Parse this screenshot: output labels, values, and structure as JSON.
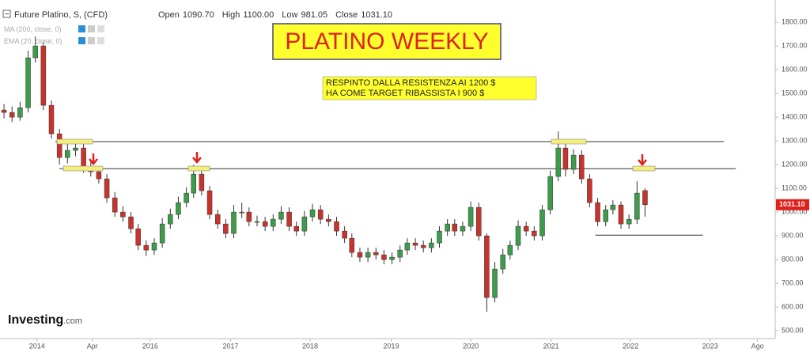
{
  "chart_data": {
    "type": "candlestick",
    "title": "Future Platino, S, (CFD)",
    "info": [
      {
        "label": "Open",
        "value": "1090.70"
      },
      {
        "label": "High",
        "value": "1100.00"
      },
      {
        "label": "Low",
        "value": "981.05"
      },
      {
        "label": "Close",
        "value": "1031.10"
      }
    ],
    "indicators": [
      "MA (200, close, 0)",
      "EMA (20, close, 0)"
    ],
    "annotation_title": "PLATINO WEEKLY",
    "annotation_note": [
      "RESPINTO DALLA RESISTENZA AI 1200 $",
      "HA COME TARGET RIBASSISTA I 900 $"
    ],
    "price_tag": "1031.10",
    "logo": {
      "main": "Investing",
      "suffix": ".com"
    },
    "up_color": "#3d9b4a",
    "down_color": "#c8332b",
    "grid": false,
    "x": [
      2014.18,
      2014.28,
      2014.38,
      2014.48,
      2014.57,
      2014.67,
      2014.77,
      2014.87,
      2014.97,
      2015.07,
      2015.17,
      2015.26,
      2015.36,
      2015.46,
      2015.56,
      2015.66,
      2015.76,
      2015.85,
      2015.95,
      2016.05,
      2016.15,
      2016.25,
      2016.35,
      2016.45,
      2016.54,
      2016.64,
      2016.74,
      2016.84,
      2016.94,
      2017.04,
      2017.14,
      2017.23,
      2017.33,
      2017.43,
      2017.53,
      2017.63,
      2017.73,
      2017.82,
      2017.92,
      2018.02,
      2018.12,
      2018.22,
      2018.32,
      2018.42,
      2018.51,
      2018.61,
      2018.71,
      2018.81,
      2018.91,
      2019.01,
      2019.11,
      2019.2,
      2019.3,
      2019.4,
      2019.5,
      2019.6,
      2019.7,
      2019.79,
      2019.89,
      2019.99,
      2020.09,
      2020.19,
      2020.29,
      2020.39,
      2020.48,
      2020.58,
      2020.68,
      2020.78,
      2020.88,
      2020.98,
      2021.08,
      2021.17,
      2021.27,
      2021.37,
      2021.47,
      2021.57,
      2021.67,
      2021.76,
      2021.86,
      2021.96,
      2022.06,
      2022.16
    ],
    "open": [
      1430,
      1420,
      1400,
      1440,
      1650,
      1700,
      1450,
      1330,
      1230,
      1260,
      1270,
      1190,
      1170,
      1140,
      1060,
      1000,
      980,
      930,
      860,
      840,
      870,
      950,
      990,
      1040,
      1080,
      1160,
      1090,
      990,
      950,
      910,
      1000,
      1000,
      960,
      960,
      940,
      970,
      1000,
      940,
      920,
      980,
      1010,
      970,
      960,
      920,
      890,
      830,
      810,
      830,
      820,
      800,
      810,
      840,
      870,
      860,
      850,
      870,
      920,
      950,
      920,
      940,
      1020,
      900,
      640,
      760,
      820,
      860,
      940,
      920,
      900,
      1010,
      1150,
      1270,
      1180,
      1240,
      1140,
      1040,
      960,
      1010,
      1030,
      950,
      970,
      1090.7
    ],
    "high": [
      1455,
      1445,
      1465,
      1680,
      1740,
      1720,
      1470,
      1350,
      1290,
      1300,
      1290,
      1215,
      1190,
      1160,
      1085,
      1025,
      1000,
      950,
      880,
      890,
      975,
      1015,
      1065,
      1105,
      1200,
      1185,
      1110,
      1010,
      970,
      1030,
      1040,
      1020,
      985,
      980,
      990,
      1025,
      1020,
      960,
      1005,
      1035,
      1030,
      990,
      980,
      940,
      910,
      850,
      850,
      850,
      840,
      830,
      860,
      890,
      890,
      880,
      890,
      940,
      970,
      970,
      960,
      1045,
      1040,
      910,
      790,
      845,
      880,
      965,
      960,
      940,
      1030,
      1175,
      1340,
      1290,
      1265,
      1260,
      1160,
      1060,
      1030,
      1050,
      1045,
      990,
      1130,
      1100
    ],
    "low": [
      1395,
      1380,
      1385,
      1420,
      1630,
      1430,
      1310,
      1200,
      1205,
      1235,
      1165,
      1150,
      1120,
      1040,
      980,
      960,
      910,
      840,
      815,
      820,
      850,
      930,
      970,
      1020,
      1060,
      1070,
      970,
      930,
      890,
      890,
      975,
      940,
      940,
      920,
      920,
      950,
      920,
      900,
      900,
      960,
      950,
      940,
      900,
      870,
      810,
      790,
      790,
      800,
      780,
      780,
      790,
      820,
      840,
      830,
      830,
      850,
      900,
      900,
      900,
      920,
      880,
      580,
      620,
      740,
      800,
      840,
      900,
      880,
      880,
      990,
      1130,
      1150,
      1160,
      1120,
      1020,
      940,
      940,
      990,
      930,
      930,
      950,
      981.05
    ],
    "close": [
      1420,
      1400,
      1440,
      1650,
      1700,
      1450,
      1330,
      1230,
      1260,
      1270,
      1190,
      1170,
      1140,
      1060,
      1000,
      980,
      930,
      860,
      840,
      870,
      950,
      990,
      1040,
      1080,
      1160,
      1090,
      990,
      950,
      910,
      1000,
      1000,
      960,
      960,
      940,
      970,
      1000,
      940,
      920,
      980,
      1010,
      970,
      960,
      920,
      890,
      830,
      810,
      830,
      820,
      800,
      810,
      840,
      870,
      860,
      850,
      870,
      920,
      950,
      920,
      940,
      1020,
      900,
      640,
      760,
      820,
      860,
      940,
      920,
      900,
      1010,
      1150,
      1270,
      1180,
      1240,
      1140,
      1040,
      960,
      1010,
      1030,
      950,
      970,
      1080,
      1031.1
    ],
    "hlines": [
      {
        "y": 1297,
        "x": [
          2014.82,
          2023.14
        ]
      },
      {
        "y": 1183,
        "x": [
          2014.87,
          2023.29
        ]
      },
      {
        "y": 903,
        "x": [
          2021.54,
          2022.88
        ]
      }
    ],
    "xlim": [
      2014.13,
      2023.78
    ],
    "xticks": [
      {
        "value": 2014.59,
        "label": "2014"
      },
      {
        "value": 2015.28,
        "label": "Apr"
      },
      2016,
      {
        "value": 2017.0,
        "label": "2017"
      },
      {
        "value": 2017.99,
        "label": "2018"
      },
      {
        "value": 2019.0,
        "label": "2019"
      },
      {
        "value": 2019.99,
        "label": "2020"
      },
      {
        "value": 2020.99,
        "label": "2021"
      },
      {
        "value": 2021.98,
        "label": "2022"
      },
      {
        "value": 2022.97,
        "label": "2023"
      },
      {
        "value": 2023.56,
        "label": "Ago"
      }
    ],
    "ylim": [
      467,
      1877
    ],
    "yticks": [
      {
        "value": 500,
        "label": "500.00"
      },
      {
        "value": 600,
        "label": "600.00"
      },
      {
        "value": 700,
        "label": "700.00"
      },
      {
        "value": 800,
        "label": "800.00"
      },
      {
        "value": 900,
        "label": "900.00"
      },
      {
        "value": 1000,
        "label": "1000.00"
      },
      {
        "value": 1100,
        "label": "1100.00"
      },
      {
        "value": 1200,
        "label": "1200.00"
      },
      {
        "value": 1300,
        "label": "1300.00"
      },
      {
        "value": 1400,
        "label": "1400.00"
      },
      {
        "value": 1500,
        "label": "1500.00"
      },
      {
        "value": 1600,
        "label": "1600.00"
      },
      {
        "value": 1700,
        "label": "1700.00"
      },
      {
        "value": 1800,
        "label": "1800.00"
      }
    ]
  }
}
